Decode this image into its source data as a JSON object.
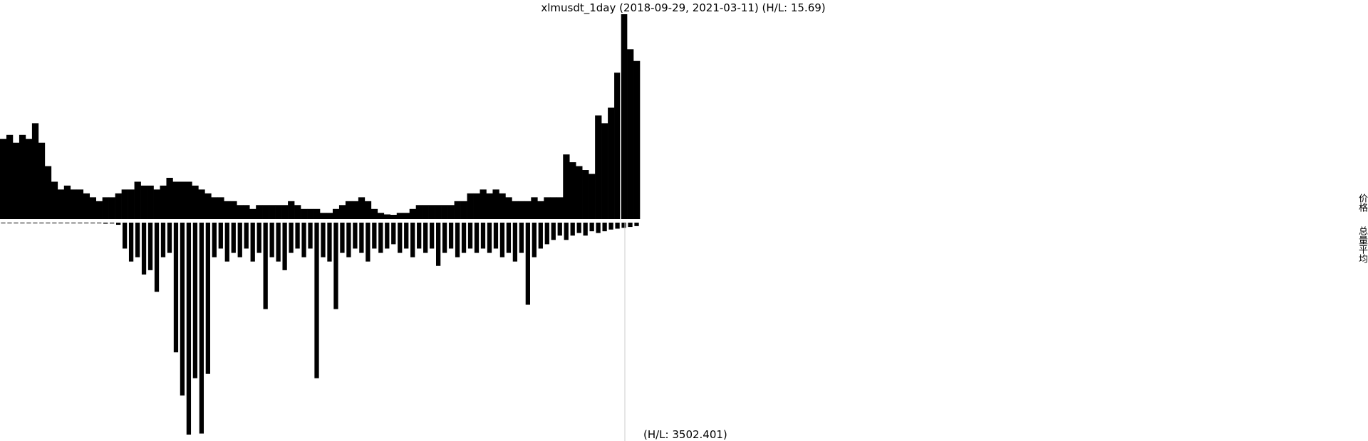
{
  "chart_data": {
    "type": "bar",
    "title": "xlmusdt_1day (2018-09-29, 2021-03-11) (H/L: 15.69)",
    "color": "#000000",
    "values": [
      0.23,
      0.24,
      0.22,
      0.24,
      0.23,
      0.27,
      0.22,
      0.16,
      0.12,
      0.1,
      0.11,
      0.1,
      0.1,
      0.09,
      0.08,
      0.07,
      0.08,
      0.08,
      0.09,
      0.1,
      0.1,
      0.12,
      0.11,
      0.11,
      0.1,
      0.11,
      0.13,
      0.12,
      0.12,
      0.12,
      0.11,
      0.1,
      0.09,
      0.08,
      0.08,
      0.07,
      0.07,
      0.06,
      0.06,
      0.05,
      0.06,
      0.06,
      0.06,
      0.06,
      0.06,
      0.07,
      0.06,
      0.05,
      0.05,
      0.05,
      0.04,
      0.04,
      0.05,
      0.06,
      0.07,
      0.07,
      0.08,
      0.07,
      0.05,
      0.04,
      0.036,
      0.035,
      0.04,
      0.04,
      0.05,
      0.06,
      0.06,
      0.06,
      0.06,
      0.06,
      0.06,
      0.07,
      0.07,
      0.09,
      0.09,
      0.1,
      0.09,
      0.1,
      0.09,
      0.08,
      0.07,
      0.07,
      0.07,
      0.08,
      0.07,
      0.08,
      0.08,
      0.08,
      0.19,
      0.17,
      0.16,
      0.15,
      0.14,
      0.29,
      0.27,
      0.31,
      0.4,
      0.55,
      0.46,
      0.43
    ],
    "volume": {
      "label": "(H/L: 3502.401)",
      "values": [
        0.5,
        0.4,
        0.3,
        0.4,
        0.3,
        0.4,
        0.3,
        0.3,
        0.4,
        0.3,
        0.3,
        0.07,
        0.3,
        0.3,
        0.5,
        0.8,
        1.2,
        1.0,
        2.5,
        30,
        45,
        40,
        60,
        55,
        80,
        40,
        35,
        150,
        200,
        245.2,
        180,
        244,
        175,
        40,
        30,
        45,
        35,
        40,
        30,
        45,
        35,
        100,
        40,
        45,
        55,
        35,
        30,
        40,
        30,
        180,
        40,
        45,
        100,
        35,
        40,
        30,
        35,
        45,
        30,
        35,
        30,
        25,
        35,
        30,
        40,
        30,
        35,
        30,
        50,
        35,
        30,
        40,
        35,
        30,
        35,
        30,
        35,
        30,
        40,
        35,
        45,
        35,
        95,
        40,
        30,
        25,
        20,
        15,
        20,
        15,
        12,
        15,
        10,
        12,
        10,
        8,
        7,
        6,
        5,
        4
      ]
    },
    "side_labels": [
      "价格",
      "总量平均"
    ]
  }
}
